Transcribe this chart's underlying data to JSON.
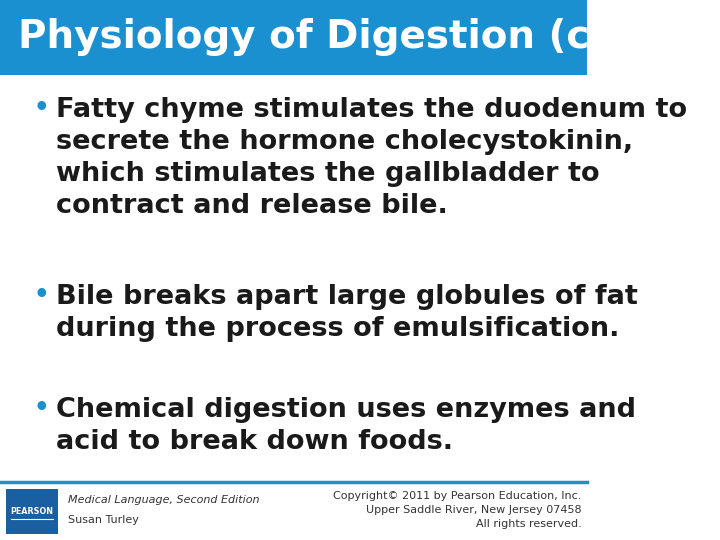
{
  "title": "Physiology of Digestion (con't)",
  "title_bg_color": "#1a90d0",
  "title_text_color": "#ffffff",
  "title_fontsize": 28,
  "body_bg_color": "#ffffff",
  "bullet_color": "#1a90d0",
  "bullet_text_color": "#1a1a1a",
  "bullet_fontsize": 19.5,
  "bullets": [
    "Fatty chyme stimulates the duodenum to\nsecrete the hormone cholecystokinin,\nwhich stimulates the gallbladder to\ncontract and release bile.",
    "Bile breaks apart large globules of fat\nduring the process of emulsification.",
    "Chemical digestion uses enzymes and\nacid to break down foods."
  ],
  "footer_left_line1": "Medical Language, Second Edition",
  "footer_left_line2": "Susan Turley",
  "footer_right_line1": "Copyright© 2011 by Pearson Education, Inc.",
  "footer_right_line2": "Upper Saddle River, New Jersey 07458",
  "footer_right_line3": "All rights reserved.",
  "footer_fontsize": 8,
  "footer_text_color": "#333333",
  "separator_color": "#1a90d0",
  "pearson_box_color": "#1a5fa0"
}
